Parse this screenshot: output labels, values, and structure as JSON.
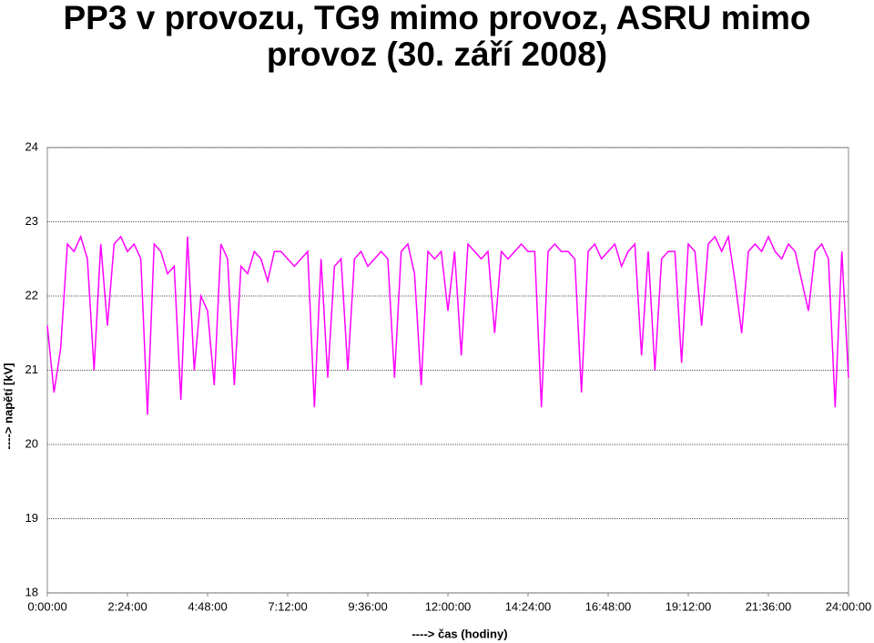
{
  "chart_data": {
    "type": "line",
    "title": "PP3 v provozu, TG9 mimo provoz, ASRU mimo provoz (30. září 2008)",
    "x_label": "----> čas (hodiny)",
    "y_label": "----> napětí [kV]",
    "x": [
      0,
      0.2,
      0.4,
      0.6,
      0.8,
      1,
      1.2,
      1.4,
      1.6,
      1.8,
      2,
      2.2,
      2.4,
      2.6,
      2.8,
      3,
      3.2,
      3.4,
      3.6,
      3.8,
      4,
      4.2,
      4.4,
      4.6,
      4.8,
      5,
      5.2,
      5.4,
      5.6,
      5.8,
      6,
      6.2,
      6.4,
      6.6,
      6.8,
      7,
      7.2,
      7.4,
      7.6,
      7.8,
      8,
      8.2,
      8.4,
      8.6,
      8.8,
      9,
      9.2,
      9.4,
      9.6,
      9.8,
      10,
      10.2,
      10.4,
      10.6,
      10.8,
      11,
      11.2,
      11.4,
      11.6,
      11.8,
      12,
      12.2,
      12.4,
      12.6,
      12.8,
      13,
      13.2,
      13.4,
      13.6,
      13.8,
      14,
      14.2,
      14.4,
      14.6,
      14.8,
      15,
      15.2,
      15.4,
      15.6,
      15.8,
      16,
      16.2,
      16.4,
      16.6,
      16.8,
      17,
      17.2,
      17.4,
      17.6,
      17.8,
      18,
      18.2,
      18.4,
      18.6,
      18.8,
      19,
      19.2,
      19.4,
      19.6,
      19.8,
      20,
      20.2,
      20.4,
      20.6,
      20.8,
      21,
      21.2,
      21.4,
      21.6,
      21.8,
      22,
      22.2,
      22.4,
      22.6,
      22.8,
      23,
      23.2,
      23.4,
      23.6,
      23.8,
      24
    ],
    "series": [
      {
        "color": "#ff00ff",
        "values": [
          21.6,
          20.7,
          21.3,
          22.7,
          22.6,
          22.8,
          22.5,
          21.0,
          22.7,
          21.6,
          22.7,
          22.8,
          22.6,
          22.7,
          22.5,
          20.4,
          22.7,
          22.6,
          22.3,
          22.4,
          20.6,
          22.8,
          21.0,
          22.0,
          21.8,
          20.8,
          22.7,
          22.5,
          20.8,
          22.4,
          22.3,
          22.6,
          22.5,
          22.2,
          22.6,
          22.6,
          22.5,
          22.4,
          22.5,
          22.6,
          20.5,
          22.5,
          20.9,
          22.4,
          22.5,
          21.0,
          22.5,
          22.6,
          22.4,
          22.5,
          22.6,
          22.5,
          20.9,
          22.6,
          22.7,
          22.3,
          20.8,
          22.6,
          22.5,
          22.6,
          21.8,
          22.6,
          21.2,
          22.7,
          22.6,
          22.5,
          22.6,
          21.5,
          22.6,
          22.5,
          22.6,
          22.7,
          22.6,
          22.6,
          20.5,
          22.6,
          22.7,
          22.6,
          22.6,
          22.5,
          20.7,
          22.6,
          22.7,
          22.5,
          22.6,
          22.7,
          22.4,
          22.6,
          22.7,
          21.2,
          22.6,
          21.0,
          22.5,
          22.6,
          22.6,
          21.1,
          22.7,
          22.6,
          21.6,
          22.7,
          22.8,
          22.6,
          22.8,
          22.2,
          21.5,
          22.6,
          22.7,
          22.6,
          22.8,
          22.6,
          22.5,
          22.7,
          22.6,
          22.2,
          21.8,
          22.6,
          22.7,
          22.5,
          20.5,
          22.6,
          20.9
        ]
      }
    ],
    "xlim": [
      0,
      24
    ],
    "xticks": [
      {
        "value": 0,
        "label": "0:00:00"
      },
      {
        "value": 2.4,
        "label": "2:24:00"
      },
      {
        "value": 4.8,
        "label": "4:48:00"
      },
      {
        "value": 7.2,
        "label": "7:12:00"
      },
      {
        "value": 9.6,
        "label": "9:36:00"
      },
      {
        "value": 12,
        "label": "12:00:00"
      },
      {
        "value": 14.4,
        "label": "14:24:00"
      },
      {
        "value": 16.8,
        "label": "16:48:00"
      },
      {
        "value": 19.2,
        "label": "19:12:00"
      },
      {
        "value": 21.6,
        "label": "21:36:00"
      },
      {
        "value": 24,
        "label": "24:00:00"
      }
    ],
    "ylim": [
      18,
      24
    ],
    "yticks": [
      18,
      19,
      20,
      21,
      22,
      23,
      24
    ],
    "grid": true
  }
}
